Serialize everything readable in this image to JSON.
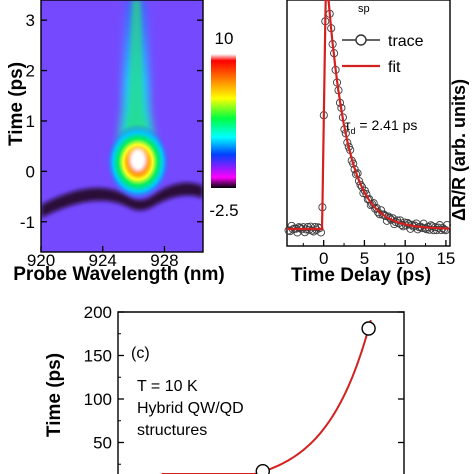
{
  "chart_data": [
    {
      "type": "heatmap",
      "panel": "a",
      "xlabel": "Probe Wavelength (nm)",
      "ylabel": "Time (ps)",
      "xticks": [
        "920",
        "924",
        "928"
      ],
      "yticks": [
        "3",
        "2",
        "1",
        "0",
        "-1"
      ],
      "colorbar": {
        "max_label": "10",
        "min_label": "-2.5"
      },
      "xlim": [
        920,
        930.5
      ],
      "ylim": [
        -1.6,
        3.4
      ],
      "peak": {
        "wavelength": 925.8,
        "time": 0.1
      }
    },
    {
      "type": "line",
      "panel": "b",
      "xlabel": "Time Delay (ps)",
      "ylabel": "ΔR/R (arb. units)",
      "xticks": [
        "0",
        "5",
        "10",
        "15"
      ],
      "xlim": [
        -4.5,
        15.5
      ],
      "top_label": "sp",
      "legend": [
        "trace",
        "fit"
      ],
      "annotation": {
        "symbol": "τ",
        "subscript": "d",
        "text": " = 2.41 ps"
      },
      "tau_d": 2.41,
      "series": [
        {
          "name": "trace",
          "marker": "open-circle"
        },
        {
          "name": "fit",
          "color": "#d42020"
        }
      ]
    },
    {
      "type": "scatter",
      "panel": "c",
      "ylabel": "Time (ps)",
      "yticks": [
        "200",
        "150",
        "100",
        "50",
        "0"
      ],
      "ylim": [
        0,
        200
      ],
      "label": "(c)",
      "annotation_lines": [
        "T = 10 K",
        "Hybrid QW/QD",
        "structures"
      ],
      "points": [
        {
          "x": 0.0,
          "y": 0
        },
        {
          "x": 1.0,
          "y": 3
        },
        {
          "x": 2.8,
          "y": 17
        },
        {
          "x": 5.1,
          "y": 181
        }
      ],
      "fit_color": "#d42020"
    }
  ]
}
